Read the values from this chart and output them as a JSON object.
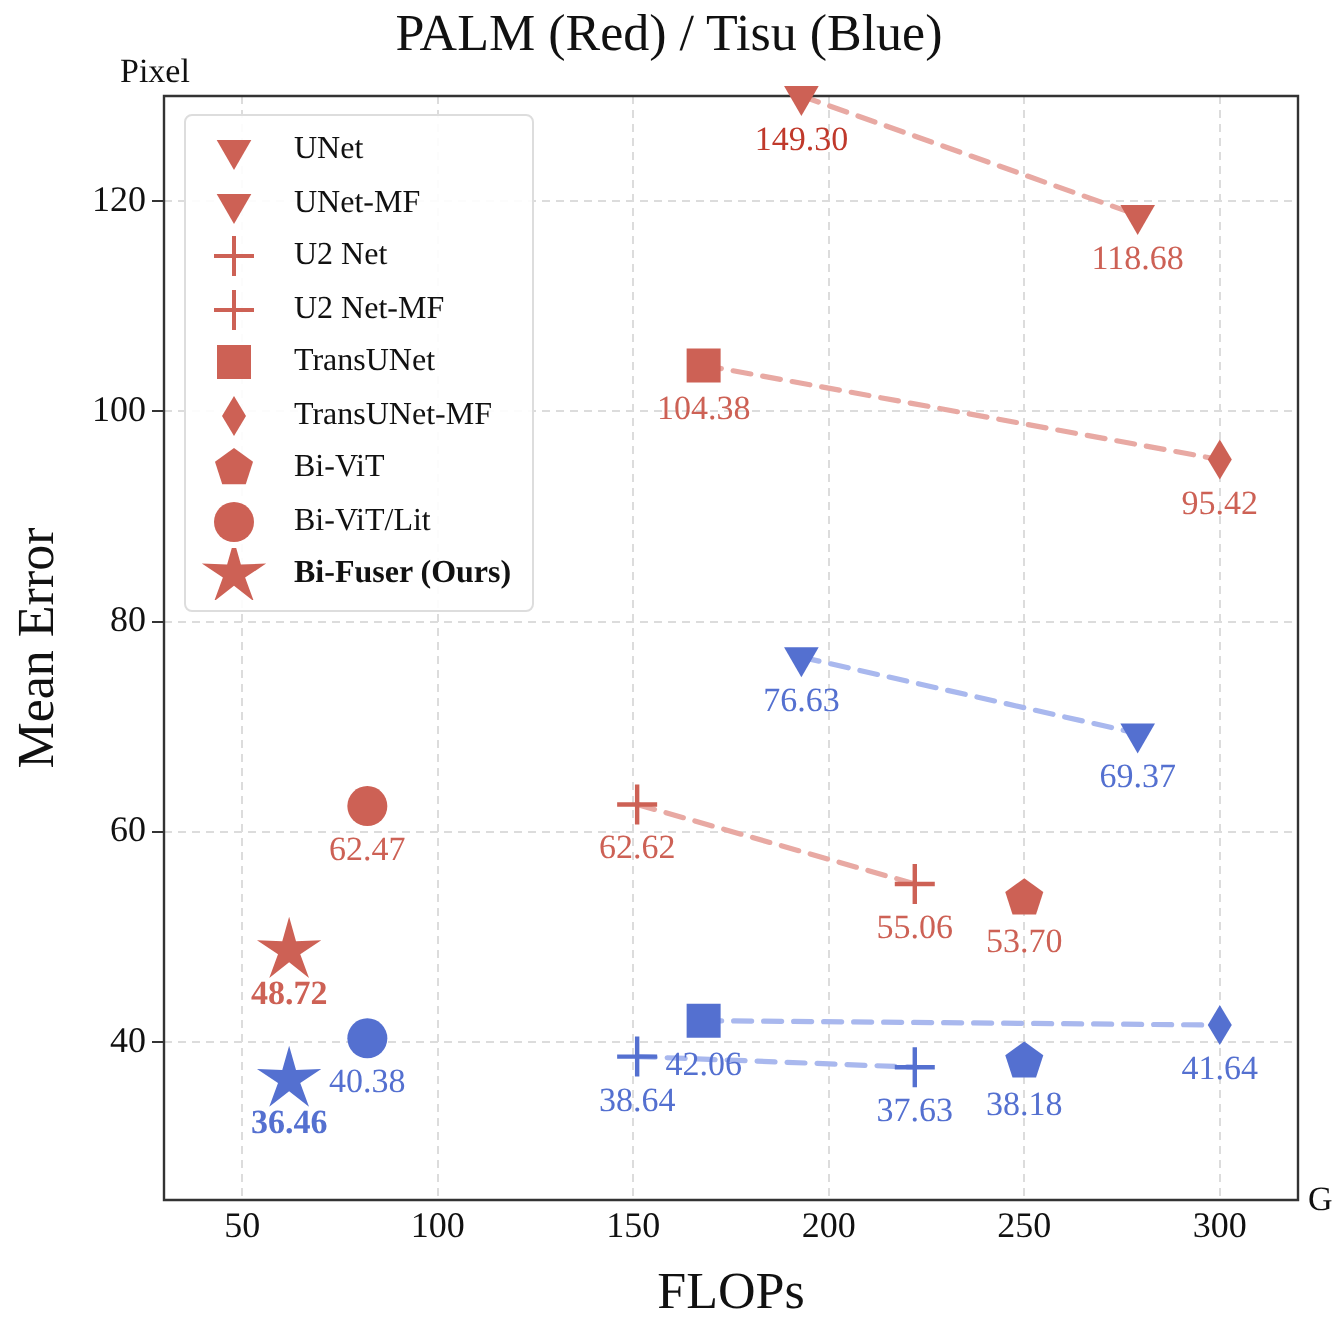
{
  "chart_data": {
    "type": "scatter",
    "title": "PALM (Red) / Tisu (Blue)",
    "xlabel": "FLOPs",
    "ylabel": "Mean Error",
    "xlim": [
      30,
      320
    ],
    "xticks": [
      50,
      100,
      150,
      200,
      250,
      300
    ],
    "ylim": [
      25,
      130
    ],
    "yticks": [
      40,
      60,
      80,
      100,
      120
    ],
    "grid": true,
    "legend": "top left",
    "annotations": [
      "Pixel",
      "G",
      {
        "text": "149.30",
        "x": 193,
        "y": 130
      }
    ],
    "series": [
      {
        "name": "UNet",
        "marker": "triangle",
        "x": [
          193,
          193
        ],
        "values": [
          130,
          76.63
        ],
        "colors": [
          "#cd6155",
          "#5470d0"
        ],
        "value_labels": [
          null,
          "76.63"
        ]
      },
      {
        "name": "UNet-MF",
        "marker": "triangle",
        "x": [
          279,
          279
        ],
        "values": [
          118.68,
          69.37
        ],
        "colors": [
          "#cd6155",
          "#5470d0"
        ],
        "value_labels": [
          "118.68",
          "69.37"
        ]
      },
      {
        "name": "U2 Net",
        "marker": "cross",
        "x": [
          151,
          151
        ],
        "values": [
          62.62,
          38.64
        ],
        "colors": [
          "#cd6155",
          "#5470d0"
        ],
        "value_labels": [
          "62.62",
          "38.64"
        ]
      },
      {
        "name": "U2 Net-MF",
        "marker": "cross",
        "x": [
          222,
          222
        ],
        "values": [
          55.06,
          37.63
        ],
        "colors": [
          "#cd6155",
          "#5470d0"
        ],
        "value_labels": [
          "55.06",
          "37.63"
        ]
      },
      {
        "name": "TransUNet",
        "marker": "square",
        "x": [
          168,
          168
        ],
        "values": [
          104.38,
          42.06
        ],
        "colors": [
          "#cd6155",
          "#5470d0"
        ],
        "value_labels": [
          "104.38",
          "42.06"
        ]
      },
      {
        "name": "TransUNet-MF",
        "marker": "diamond",
        "x": [
          300,
          300
        ],
        "values": [
          95.42,
          41.64
        ],
        "colors": [
          "#cd6155",
          "#5470d0"
        ],
        "value_labels": [
          "95.42",
          "41.64"
        ]
      },
      {
        "name": "Bi-ViT",
        "x": [
          250,
          250
        ],
        "values": [
          53.7,
          38.18
        ],
        "colors": [
          "#cd6155",
          "#5470d0"
        ],
        "value_labels": [
          "53.70",
          "38.18"
        ]
      },
      {
        "name": "Bi-ViT/Lit",
        "marker": "circle",
        "x": [
          82,
          82
        ],
        "values": [
          62.47,
          40.38
        ],
        "colors": [
          "#cd6155",
          "#5470d0"
        ],
        "value_labels": [
          "62.47",
          "40.38"
        ]
      },
      {
        "name": "Bi-Fuser (Ours)",
        "marker": "star",
        "x": [
          62,
          62
        ],
        "values": [
          48.72,
          36.46
        ],
        "colors": [
          "#cd6155",
          "#5470d0"
        ],
        "value_labels": [
          "48.72",
          "36.46"
        ]
      },
      {
        "type": "line",
        "line_style": "dashed",
        "marker": "none",
        "color": "#e8a9a3",
        "x": [
          193,
          279
        ],
        "values": [
          130,
          118.68
        ]
      },
      {
        "type": "line",
        "line_style": "dashed",
        "marker": "none",
        "color": "#e8a9a3",
        "x": [
          168,
          300
        ],
        "values": [
          104.38,
          95.42
        ]
      },
      {
        "type": "line",
        "line_style": "dashed",
        "marker": "none",
        "color": "#e8a9a3",
        "x": [
          151,
          222
        ],
        "values": [
          62.62,
          55.06
        ]
      },
      {
        "type": "line",
        "line_style": "dashed",
        "marker": "none",
        "color": "#a9b8ee",
        "x": [
          193,
          279
        ],
        "values": [
          76.63,
          69.37
        ]
      },
      {
        "type": "line",
        "line_style": "dashed",
        "marker": "none",
        "color": "#a9b8ee",
        "x": [
          168,
          300
        ],
        "values": [
          42.06,
          41.64
        ]
      },
      {
        "type": "line",
        "line_style": "dashed",
        "marker": "none",
        "color": "#a9b8ee",
        "x": [
          151,
          222
        ],
        "values": [
          38.64,
          37.63
        ]
      }
    ]
  }
}
